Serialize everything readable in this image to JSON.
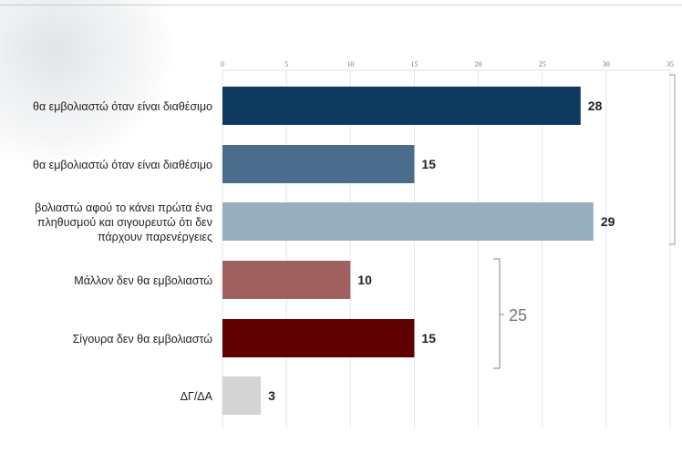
{
  "chart_data": {
    "type": "bar",
    "orientation": "horizontal",
    "title": "",
    "xlabel": "",
    "ylabel": "",
    "xlim": [
      0,
      35
    ],
    "ticks": [
      0,
      5,
      10,
      15,
      20,
      25,
      30,
      35
    ],
    "grid": true,
    "categories": [
      [
        "θα εμβολιαστώ όταν είναι διαθέσιμο"
      ],
      [
        "θα εμβολιαστώ όταν είναι διαθέσιμο"
      ],
      [
        "βολιαστώ αφού το κάνει πρώτα ένα",
        "πληθυσμού και σιγουρευτώ ότι δεν",
        "πάρχουν παρενέργειες"
      ],
      [
        "Μάλλον δεν θα εμβολιαστώ"
      ],
      [
        "Σίγουρα δεν θα εμβολιαστώ"
      ],
      [
        "ΔΓ/ΔΑ"
      ]
    ],
    "values": [
      28,
      15,
      29,
      10,
      15,
      3
    ],
    "colors": [
      "#0d3a5e",
      "#4a6d8e",
      "#98afc0",
      "#a0605f",
      "#5e0000",
      "#d4d4d4"
    ],
    "annotations": [
      {
        "text": "25",
        "group": [
          3,
          4
        ]
      }
    ]
  }
}
